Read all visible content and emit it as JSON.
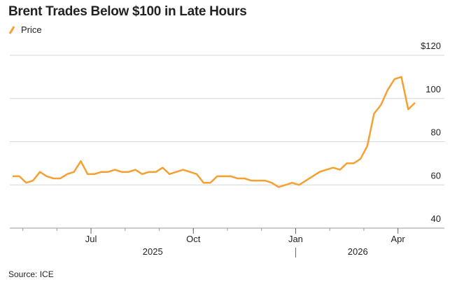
{
  "chart_data": {
    "type": "line",
    "title": "Brent Trades Below $100 in Late Hours",
    "source": "Source: ICE",
    "x": [
      "2025-04",
      "2025-04",
      "2025-05",
      "2025-05",
      "2025-05",
      "2025-05",
      "2025-05",
      "2025-06",
      "2025-06",
      "2025-06",
      "2025-06",
      "2025-06",
      "2025-07",
      "2025-07",
      "2025-07",
      "2025-07",
      "2025-07",
      "2025-08",
      "2025-08",
      "2025-08",
      "2025-08",
      "2025-08",
      "2025-09",
      "2025-09",
      "2025-09",
      "2025-09",
      "2025-09",
      "2025-10",
      "2025-10",
      "2025-10",
      "2025-10",
      "2025-10",
      "2025-11",
      "2025-11",
      "2025-11",
      "2025-11",
      "2025-11",
      "2025-12",
      "2025-12",
      "2025-12",
      "2025-12",
      "2025-12",
      "2026-01",
      "2026-01",
      "2026-01",
      "2026-01",
      "2026-01",
      "2026-02",
      "2026-02",
      "2026-02",
      "2026-02",
      "2026-02",
      "2026-03",
      "2026-03",
      "2026-03",
      "2026-03",
      "2026-03",
      "2026-04",
      "2026-04",
      "2026-04"
    ],
    "series": [
      {
        "name": "Price",
        "color": "#f5a031",
        "values": [
          64,
          64,
          61,
          62,
          66,
          64,
          63,
          63,
          65,
          66,
          71,
          65,
          65,
          66,
          66,
          67,
          66,
          66,
          67,
          65,
          66,
          66,
          68,
          65,
          66,
          67,
          66,
          65,
          61,
          61,
          64,
          64,
          64,
          63,
          63,
          62,
          62,
          62,
          61,
          59,
          60,
          61,
          60,
          62,
          64,
          66,
          67,
          68,
          67,
          70,
          70,
          72,
          78,
          93,
          97,
          104,
          109,
          110,
          95,
          98
        ]
      }
    ],
    "xticks": [
      {
        "value": "2025-07",
        "label": "Jul"
      },
      {
        "value": "2025-10",
        "label": "Oct"
      },
      {
        "value": "2026-01",
        "label": "Jan"
      },
      {
        "value": "2026-04",
        "label": "Apr"
      }
    ],
    "years": [
      "2025",
      "2026"
    ],
    "ylim": [
      40,
      120
    ],
    "yticks": [
      40,
      60,
      80,
      100,
      {
        "value": 120,
        "label": "$120"
      }
    ],
    "grid": true
  }
}
